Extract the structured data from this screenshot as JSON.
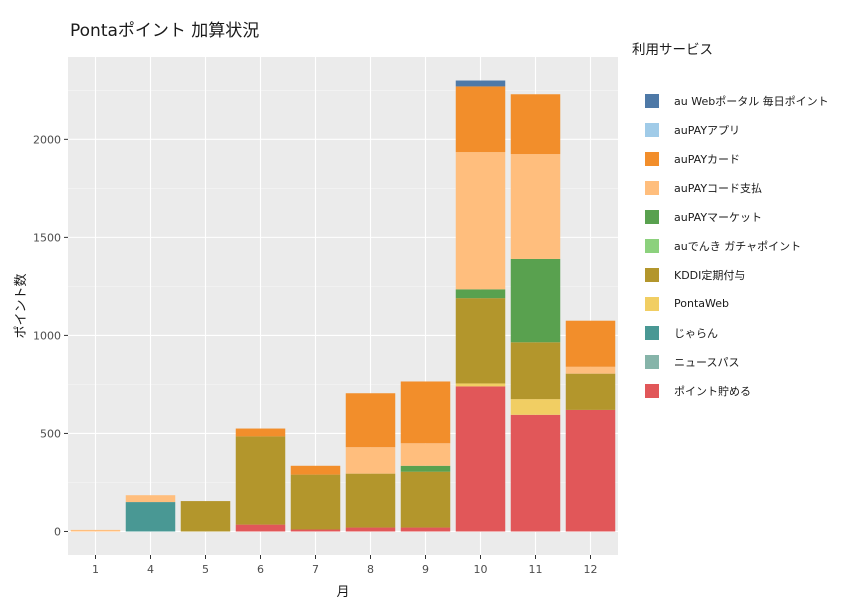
{
  "chart_data": {
    "type": "bar",
    "stacked": true,
    "title": "Pontaポイント 加算状況",
    "xlabel": "月",
    "ylabel": "ポイント数",
    "categories": [
      "1",
      "4",
      "5",
      "6",
      "7",
      "8",
      "9",
      "10",
      "11",
      "12"
    ],
    "ylim": [
      0,
      2400
    ],
    "yticks": [
      0,
      500,
      1000,
      1500,
      2000
    ],
    "ytick_labels": [
      "0",
      "500",
      "1000",
      "1500",
      "2000"
    ],
    "grid": true,
    "legend_title": "利用サービス",
    "legend_position": "right",
    "series": [
      {
        "name": "ポイント貯める",
        "color": "#e15759",
        "values": [
          0,
          0,
          0,
          35,
          10,
          20,
          20,
          740,
          595,
          620
        ]
      },
      {
        "name": "ニュースパス",
        "color": "#86b4a9",
        "values": [
          0,
          0,
          0,
          0,
          0,
          0,
          0,
          0,
          0,
          0
        ]
      },
      {
        "name": "じゃらん",
        "color": "#499894",
        "values": [
          0,
          150,
          0,
          0,
          0,
          0,
          0,
          0,
          0,
          0
        ]
      },
      {
        "name": "PontaWeb",
        "color": "#f1ce63",
        "values": [
          0,
          0,
          0,
          0,
          0,
          0,
          0,
          15,
          80,
          0
        ]
      },
      {
        "name": "KDDI定期付与",
        "color": "#b3962c",
        "values": [
          0,
          0,
          155,
          450,
          280,
          275,
          285,
          435,
          290,
          185
        ]
      },
      {
        "name": "auでんき ガチャポイント",
        "color": "#8cd17d",
        "values": [
          0,
          0,
          0,
          0,
          0,
          0,
          0,
          0,
          0,
          0
        ]
      },
      {
        "name": "auPAYマーケット",
        "color": "#59a14f",
        "values": [
          0,
          0,
          0,
          0,
          0,
          0,
          30,
          45,
          425,
          0
        ]
      },
      {
        "name": "auPAYコード支払",
        "color": "#ffbe7d",
        "values": [
          8,
          35,
          0,
          0,
          0,
          135,
          115,
          700,
          535,
          35
        ]
      },
      {
        "name": "auPAYカード",
        "color": "#f28e2b",
        "values": [
          0,
          0,
          0,
          40,
          45,
          275,
          315,
          335,
          305,
          235
        ]
      },
      {
        "name": "auPAYアプリ",
        "color": "#a0cbe8",
        "values": [
          0,
          0,
          0,
          0,
          0,
          0,
          0,
          0,
          0,
          0
        ]
      },
      {
        "name": "au Webポータル 毎日ポイント",
        "color": "#4e79a7",
        "values": [
          0,
          0,
          0,
          0,
          0,
          0,
          0,
          30,
          0,
          0
        ]
      }
    ]
  }
}
